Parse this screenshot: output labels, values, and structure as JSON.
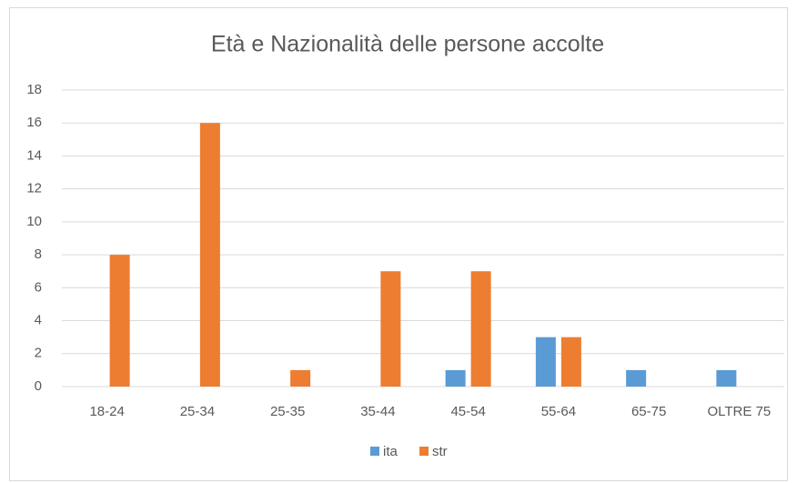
{
  "chart_data": {
    "type": "bar",
    "title": "Età e Nazionalità delle persone accolte",
    "categories": [
      "18-24",
      "25-34",
      "25-35",
      "35-44",
      "45-54",
      "55-64",
      "65-75",
      "OLTRE 75"
    ],
    "series": [
      {
        "name": "ita",
        "color": "#5b9bd5",
        "values": [
          0,
          0,
          0,
          0,
          1,
          3,
          1,
          1
        ]
      },
      {
        "name": "str",
        "color": "#ed7d31",
        "values": [
          8,
          16,
          1,
          7,
          7,
          3,
          0,
          0
        ]
      }
    ],
    "ylim": [
      0,
      18
    ],
    "yticks": [
      0,
      2,
      4,
      6,
      8,
      10,
      12,
      14,
      16,
      18
    ],
    "grid": true,
    "legend": "bottom"
  }
}
